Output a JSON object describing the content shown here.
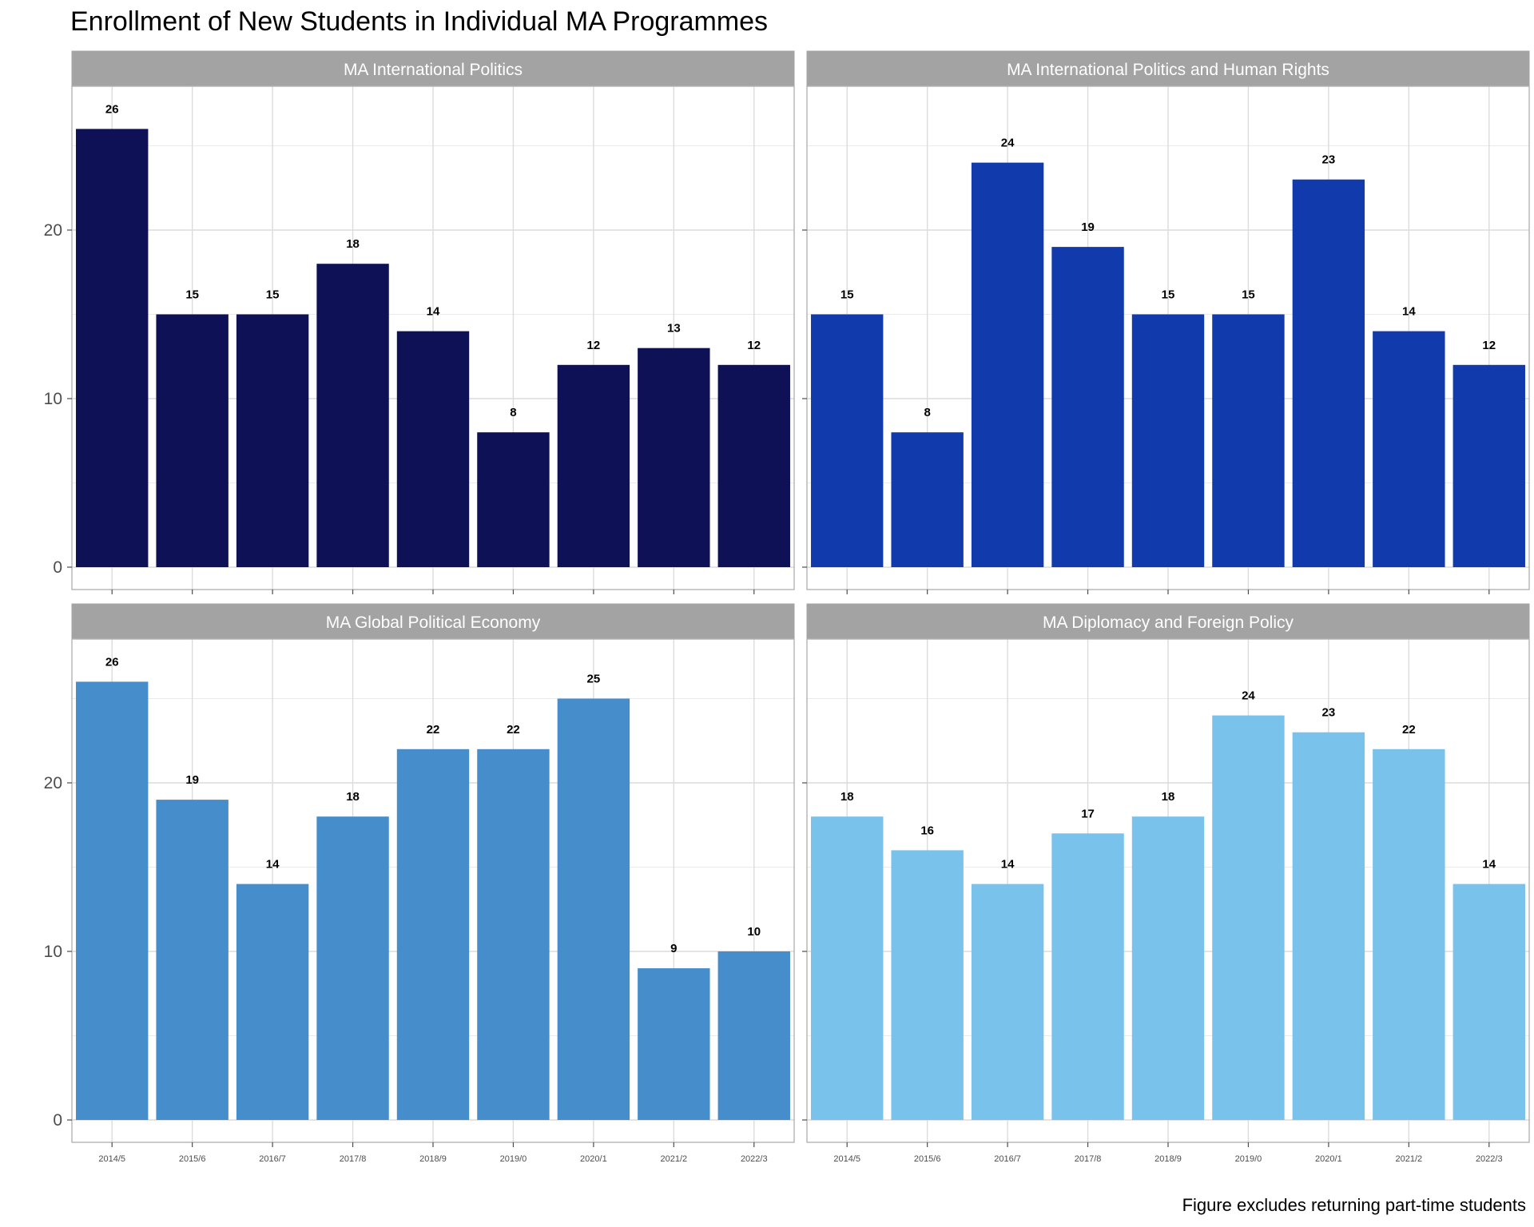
{
  "title": "Enrollment of New Students in Individual MA Programmes",
  "caption": "Figure excludes returning part-time students",
  "chart_data": {
    "type": "bar",
    "facet": "wrap 2x2",
    "categories": [
      "2014/5",
      "2015/6",
      "2016/7",
      "2017/8",
      "2018/9",
      "2019/0",
      "2020/1",
      "2021/2",
      "2022/3"
    ],
    "ylim": [
      0,
      28
    ],
    "yticks": [
      0,
      10,
      20
    ],
    "grid": true,
    "panels": [
      {
        "name": "MA International Politics",
        "color": "#0e1156",
        "values": [
          26,
          15,
          15,
          18,
          14,
          8,
          12,
          13,
          12
        ]
      },
      {
        "name": "MA International Politics and Human Rights",
        "color": "#113aac",
        "values": [
          15,
          8,
          24,
          19,
          15,
          15,
          23,
          14,
          12
        ]
      },
      {
        "name": "MA Global Political Economy",
        "color": "#468ecb",
        "values": [
          26,
          19,
          14,
          18,
          22,
          22,
          25,
          9,
          10
        ]
      },
      {
        "name": "MA Diplomacy and Foreign Policy",
        "color": "#79c2eb",
        "values": [
          18,
          16,
          14,
          17,
          18,
          24,
          23,
          22,
          14
        ]
      }
    ]
  }
}
